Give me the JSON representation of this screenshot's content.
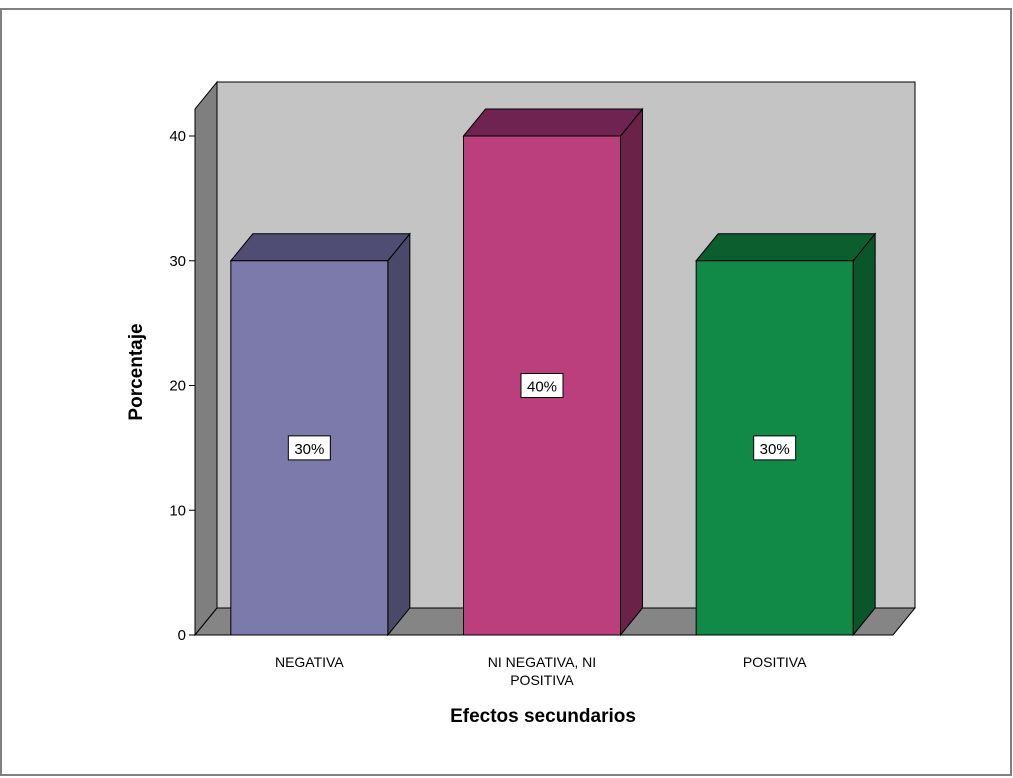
{
  "chart_data": {
    "type": "bar",
    "style": "3d",
    "title": "",
    "xlabel": "Efectos secundarios",
    "ylabel": "Porcentaje",
    "categories": [
      "NEGATIVA",
      "NI NEGATIVA, NI POSITIVA",
      "POSITIVA"
    ],
    "category_lines": [
      [
        "NEGATIVA"
      ],
      [
        "NI NEGATIVA, NI",
        "POSITIVA"
      ],
      [
        "POSITIVA"
      ]
    ],
    "values": [
      30,
      40,
      30
    ],
    "data_labels": [
      "30%",
      "40%",
      "30%"
    ],
    "ylim": [
      0,
      40
    ],
    "yticks": [
      0,
      10,
      20,
      30,
      40
    ],
    "grid": false,
    "legend": "none",
    "colors": {
      "bars": [
        {
          "front": "#7b7aaa",
          "top": "#4f4d73",
          "side": "#4a4969"
        },
        {
          "front": "#bb3f7d",
          "top": "#6e2350",
          "side": "#6b2249"
        },
        {
          "front": "#128a47",
          "top": "#0c5e2f",
          "side": "#0b552b"
        }
      ],
      "back_wall": "#c4c4c4",
      "side_wall": "#7f7f7f",
      "floor": "#858585",
      "frame": "#808080"
    }
  }
}
